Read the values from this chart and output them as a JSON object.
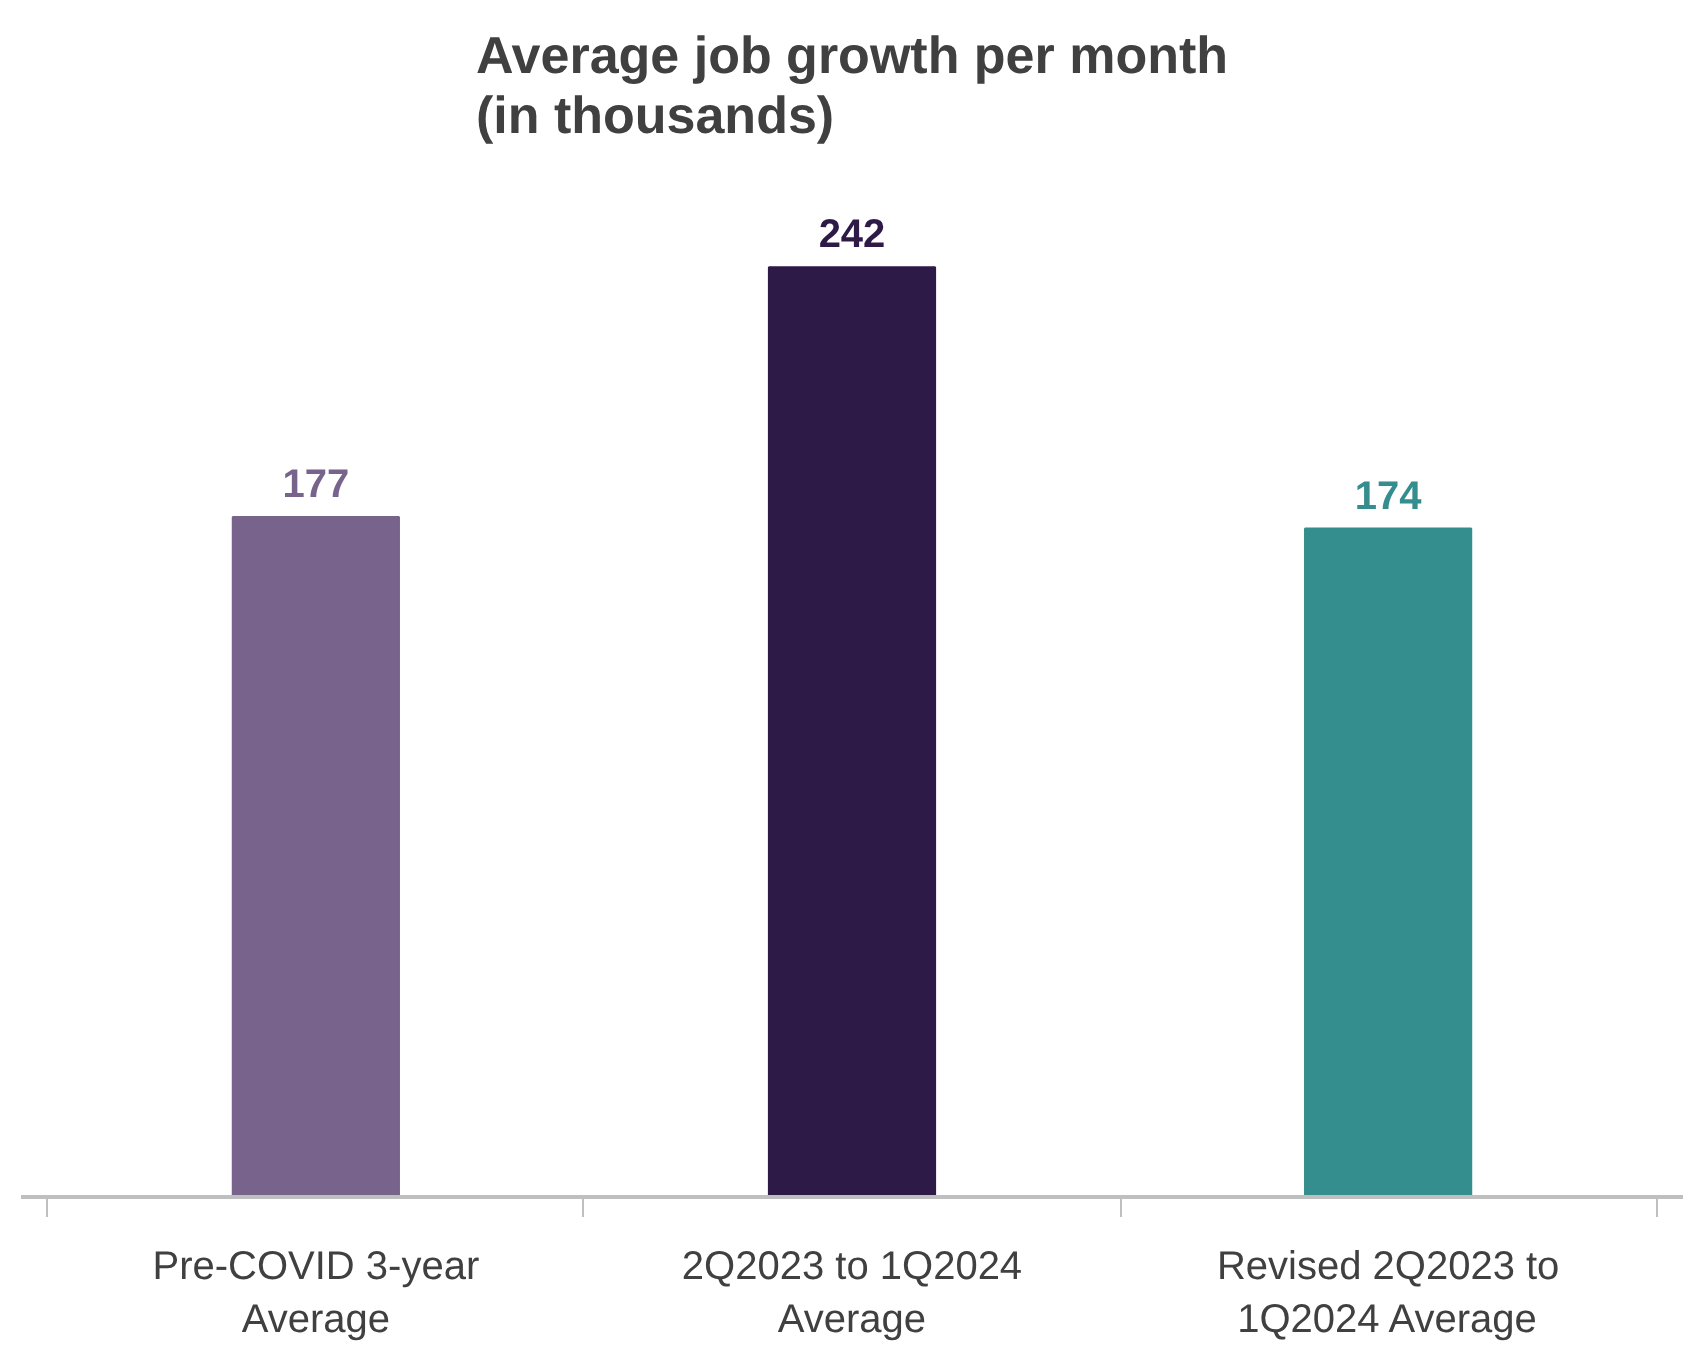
{
  "chart_data": {
    "type": "bar",
    "title": "Average job growth per month\n(in thousands)",
    "categories": [
      "Pre-COVID 3-year\nAverage",
      "2Q2023 to 1Q2024\nAverage",
      "Revised 2Q2023 to\n1Q2024 Average"
    ],
    "values": [
      177,
      242,
      174
    ],
    "colors": [
      "#77638c",
      "#2e1a47",
      "#358e8e"
    ],
    "data_labels": true
  }
}
